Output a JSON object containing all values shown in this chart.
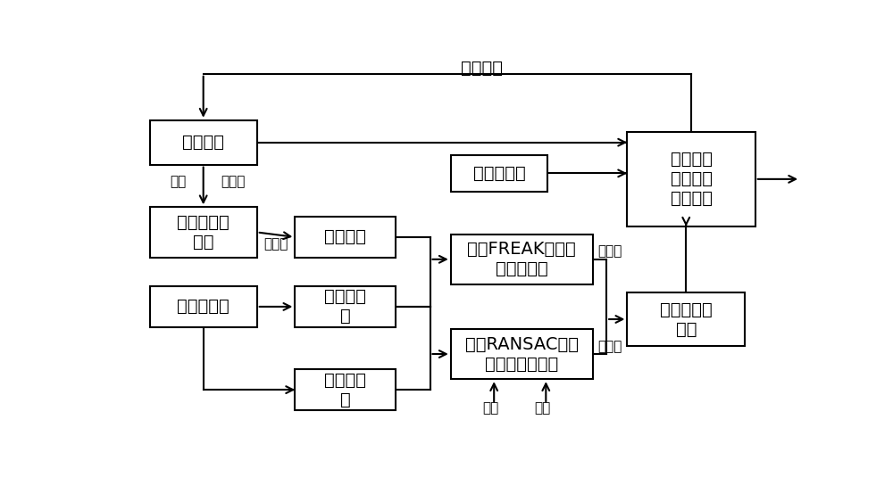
{
  "bg": "#ffffff",
  "lw": 1.5,
  "fs_main": 14,
  "fs_label": 11,
  "boxes": {
    "inertial": [
      0.055,
      0.73,
      0.155,
      0.115
    ],
    "digmap": [
      0.055,
      0.49,
      0.155,
      0.13
    ],
    "refimg": [
      0.265,
      0.49,
      0.145,
      0.105
    ],
    "camera": [
      0.055,
      0.31,
      0.155,
      0.105
    ],
    "curframe": [
      0.265,
      0.31,
      0.145,
      0.105
    ],
    "prevframe": [
      0.265,
      0.095,
      0.145,
      0.105
    ],
    "freak": [
      0.49,
      0.42,
      0.205,
      0.13
    ],
    "ransac": [
      0.49,
      0.175,
      0.205,
      0.13
    ],
    "baro": [
      0.49,
      0.66,
      0.14,
      0.095
    ],
    "kalman": [
      0.745,
      0.57,
      0.185,
      0.245
    ],
    "fusion": [
      0.745,
      0.26,
      0.17,
      0.14
    ]
  },
  "texts": {
    "inertial": "惯性导航",
    "digmap": "数字地图数\n据库",
    "refimg": "基准图像",
    "camera": "机载摄像机",
    "curframe": "当前帧图\n像",
    "prevframe": "前一帧图\n像",
    "freak": "基于FREAK描述符\n的景象匹配",
    "ransac": "基于RANSAC特征\n匹配的单应估计",
    "baro": "气压高度计",
    "kalman": "组合导航\n卡尔曼滤\n波器模块",
    "fusion": "经纬度融合\n校正"
  },
  "label_huandao": "惯导",
  "label_jingwei1": "经纬度",
  "label_cudingwei": "粗定位",
  "label_jingwei2": "经纬度",
  "label_jingwei3": "经纬度",
  "label_gaodu": "高度",
  "label_zitai": "姿态",
  "label_wuchajiaozheng": "误差校正"
}
